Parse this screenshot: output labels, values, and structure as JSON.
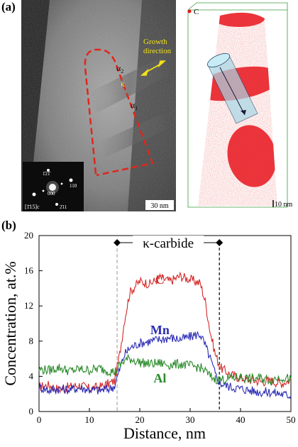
{
  "panel_a": {
    "label": "(a)",
    "tem": {
      "growth_label_line1": "Growth",
      "growth_label_line2": "direction",
      "phase_alpha2": "α",
      "phase_alpha2_sub": "2",
      "phase_kappa": "κ",
      "phase_alpha1": "α",
      "phase_alpha1_sub": "1",
      "scale_bar": "30 nm",
      "diffraction_spot_top": "1̄21̄",
      "diffraction_spot_right": "110",
      "diffraction_spot_center": "000",
      "diffraction_spot_bottom": "2̄11",
      "zone_axis": "[1̄15]c",
      "colors": {
        "dashed_outline": "#e0261c",
        "growth_arrow": "#f2e21a"
      }
    },
    "apt": {
      "legend_label": "C",
      "scale_bar": "10 nm",
      "colors": {
        "atoms": "#e8141c",
        "box": "#3c9a3c",
        "cylinder": "#a8d8e6"
      }
    }
  },
  "panel_b": {
    "label": "(b)"
  },
  "chart_data": {
    "type": "line",
    "xlabel": "Distance, nm",
    "ylabel": "Concentration, at.%",
    "xlim": [
      0,
      50
    ],
    "ylim": [
      0,
      20
    ],
    "xticks": [
      "0",
      "10",
      "20",
      "30",
      "40",
      "50"
    ],
    "yticks": [
      "0",
      "4",
      "8",
      "12",
      "16",
      "20"
    ],
    "annotation": "κ-carbide",
    "bracket": [
      15.5,
      35.8
    ],
    "series": [
      {
        "name": "C",
        "color": "#d42a2a",
        "x": [
          0,
          2,
          4,
          6,
          8,
          10,
          12,
          14,
          15,
          16,
          17,
          18,
          19,
          20,
          22,
          24,
          26,
          28,
          30,
          32,
          33,
          34,
          35,
          36,
          38,
          40,
          42,
          44,
          46,
          48,
          50
        ],
        "y": [
          2.8,
          3.0,
          2.5,
          2.8,
          3.0,
          2.6,
          2.8,
          3.2,
          3.5,
          6.5,
          10.5,
          13.5,
          14.2,
          14.8,
          14.5,
          15.2,
          14.8,
          15.4,
          15.0,
          14.6,
          12.5,
          9.0,
          6.5,
          5.0,
          4.2,
          3.8,
          3.6,
          3.4,
          3.5,
          3.2,
          3.6
        ]
      },
      {
        "name": "Mn",
        "color": "#2a2ab4",
        "x": [
          0,
          2,
          4,
          6,
          8,
          10,
          12,
          14,
          15,
          16,
          17,
          18,
          20,
          22,
          24,
          26,
          28,
          30,
          31,
          32,
          33,
          34,
          35,
          36,
          38,
          40,
          42,
          44,
          46,
          48,
          50
        ],
        "y": [
          2.8,
          2.4,
          2.6,
          2.5,
          2.7,
          2.5,
          2.4,
          2.6,
          2.9,
          4.8,
          6.5,
          7.2,
          7.8,
          8.0,
          8.2,
          8.4,
          8.2,
          8.5,
          8.7,
          8.8,
          7.5,
          6.0,
          4.2,
          3.2,
          2.8,
          2.6,
          2.4,
          2.2,
          2.2,
          2.0,
          1.8
        ]
      },
      {
        "name": "Al",
        "color": "#2a8a2a",
        "x": [
          0,
          2,
          4,
          6,
          8,
          10,
          12,
          14,
          15,
          16,
          17,
          18,
          20,
          22,
          24,
          26,
          28,
          30,
          32,
          33,
          34,
          35,
          36,
          38,
          40,
          42,
          44,
          46,
          48,
          50
        ],
        "y": [
          4.8,
          4.7,
          5.0,
          4.6,
          4.8,
          4.7,
          4.9,
          4.6,
          4.5,
          5.2,
          5.8,
          6.0,
          5.6,
          5.4,
          5.5,
          5.3,
          5.4,
          5.2,
          5.0,
          4.6,
          4.0,
          3.7,
          3.6,
          3.8,
          3.9,
          3.7,
          3.8,
          3.6,
          3.9,
          3.7
        ]
      }
    ],
    "series_labels_y": [
      14.5,
      8.8,
      3.3
    ],
    "series_labels_x": [
      24,
      24,
      24
    ]
  }
}
